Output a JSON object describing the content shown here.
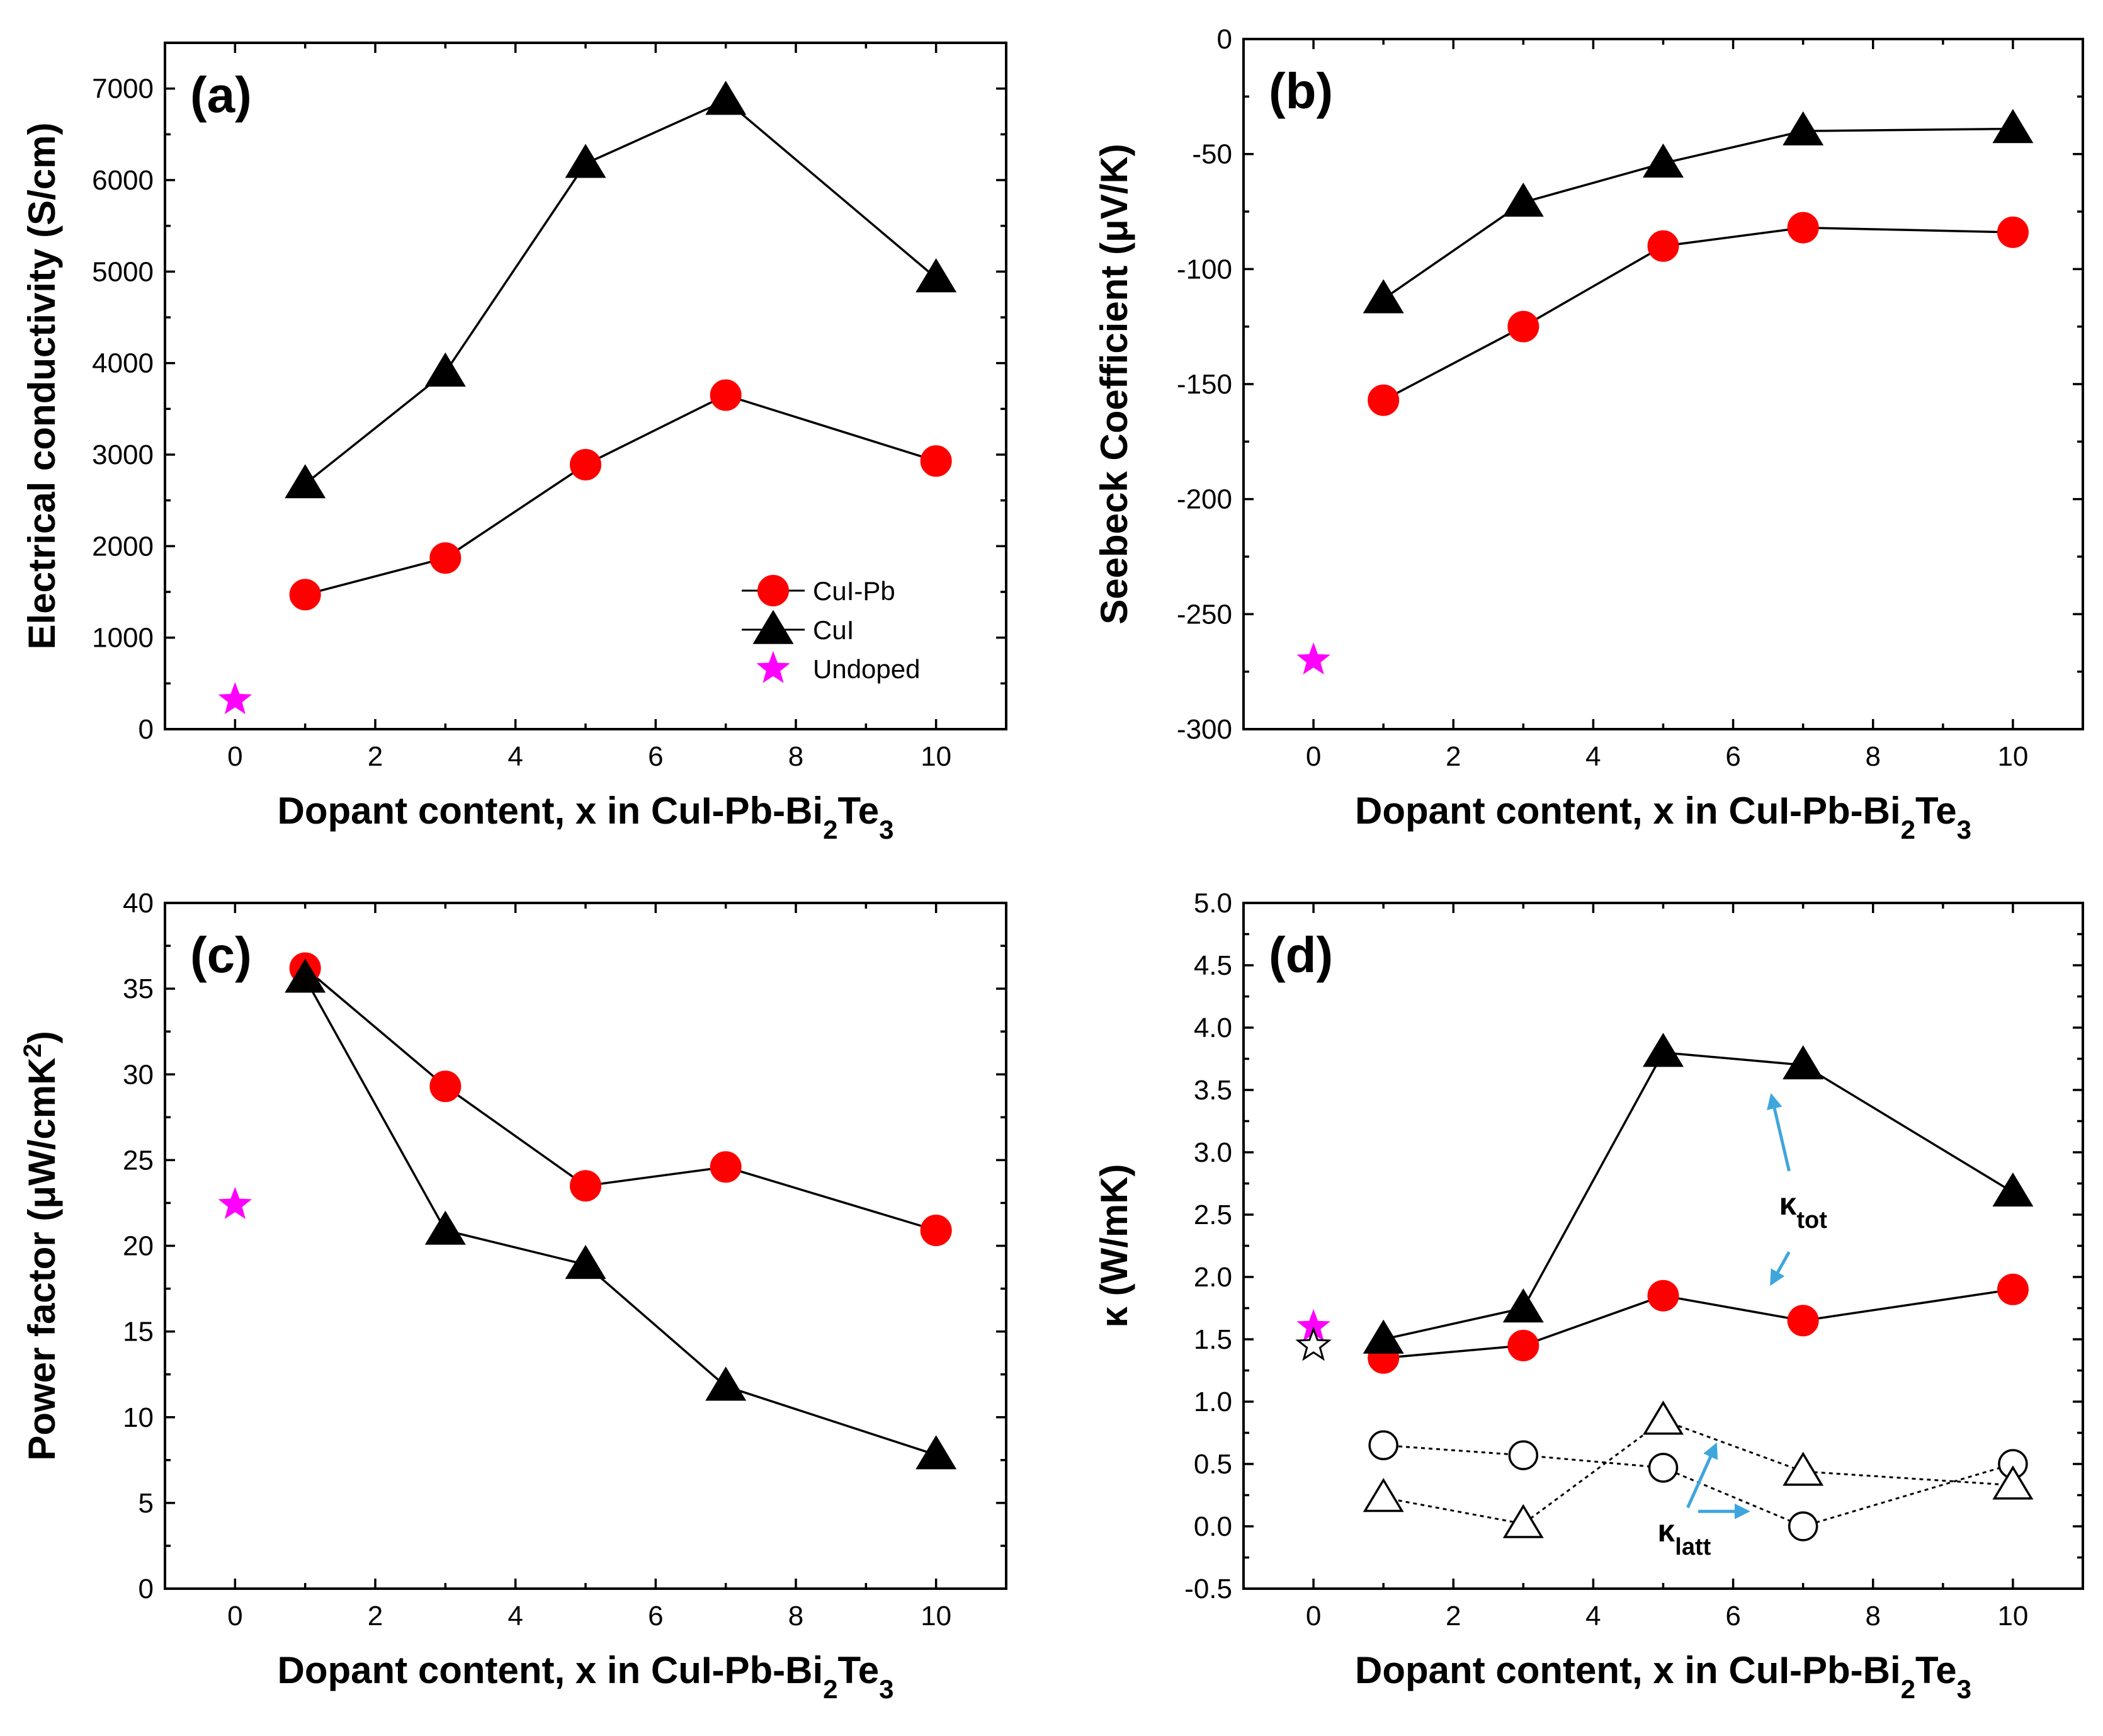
{
  "colors": {
    "cupb": "#ff0000",
    "cui": "#000000",
    "undoped": "#ff00ff",
    "arrow": "#3ea6dc"
  },
  "chart_data": [
    {
      "id": "a",
      "type": "line",
      "panel_label": "(a)",
      "xlabel": {
        "main": "Dopant content, x in CuI-Pb-Bi",
        "sub1": "2",
        "mid": "Te",
        "sub2": "3"
      },
      "ylabel": "Electrical conductivity (S/cm)",
      "xlim": [
        -1,
        11
      ],
      "ylim": [
        0,
        7500
      ],
      "xticks": [
        0,
        2,
        4,
        6,
        8,
        10
      ],
      "xtick_labels": [
        "0",
        "2",
        "4",
        "6",
        "8",
        "10"
      ],
      "yticks": [
        0,
        1000,
        2000,
        3000,
        4000,
        5000,
        6000,
        7000
      ],
      "ytick_labels": [
        "0",
        "1000",
        "2000",
        "3000",
        "4000",
        "5000",
        "6000",
        "7000"
      ],
      "series": [
        {
          "name": "CuI-Pb",
          "marker": "circle",
          "filled": true,
          "color": "#ff0000",
          "line": "solid",
          "x": [
            1,
            3,
            5,
            7,
            10
          ],
          "y": [
            1470,
            1870,
            2890,
            3650,
            2930
          ]
        },
        {
          "name": "CuI",
          "marker": "triangle",
          "filled": true,
          "color": "#000000",
          "line": "solid",
          "x": [
            1,
            3,
            5,
            7,
            10
          ],
          "y": [
            2680,
            3900,
            6180,
            6870,
            4930
          ]
        },
        {
          "name": "Undoped",
          "marker": "star",
          "filled": true,
          "color": "#ff00ff",
          "line": "none",
          "x": [
            0
          ],
          "y": [
            320
          ]
        }
      ],
      "legend": {
        "position": "bottom-right",
        "entries": [
          "CuI-Pb",
          "CuI",
          "Undoped"
        ]
      }
    },
    {
      "id": "b",
      "type": "line",
      "panel_label": "(b)",
      "xlabel": {
        "main": "Dopant content, x in CuI-Pb-Bi",
        "sub1": "2",
        "mid": "Te",
        "sub2": "3"
      },
      "ylabel": "Seebeck Coefficient (μV/K)",
      "xlim": [
        -1,
        11
      ],
      "ylim": [
        -300,
        0
      ],
      "xticks": [
        0,
        2,
        4,
        6,
        8,
        10
      ],
      "xtick_labels": [
        "0",
        "2",
        "4",
        "6",
        "8",
        "10"
      ],
      "yticks": [
        0,
        -50,
        -100,
        -150,
        -200,
        -250,
        -300
      ],
      "ytick_labels": [
        "0",
        "-50",
        "-100",
        "-150",
        "-200",
        "-250",
        "-300"
      ],
      "series": [
        {
          "name": "CuI-Pb",
          "marker": "circle",
          "filled": true,
          "color": "#ff0000",
          "line": "solid",
          "x": [
            1,
            3,
            5,
            7,
            10
          ],
          "y": [
            -157,
            -125,
            -90,
            -82,
            -84
          ]
        },
        {
          "name": "CuI",
          "marker": "triangle",
          "filled": true,
          "color": "#000000",
          "line": "solid",
          "x": [
            1,
            3,
            5,
            7,
            10
          ],
          "y": [
            -113,
            -71,
            -54,
            -40,
            -39
          ]
        },
        {
          "name": "Undoped",
          "marker": "star",
          "filled": true,
          "color": "#ff00ff",
          "line": "none",
          "x": [
            0
          ],
          "y": [
            -270
          ]
        }
      ]
    },
    {
      "id": "c",
      "type": "line",
      "panel_label": "(c)",
      "xlabel": {
        "main": "Dopant content, x in CuI-Pb-Bi",
        "sub1": "2",
        "mid": "Te",
        "sub2": "3"
      },
      "ylabel": "Power factor (μW/cmK",
      "ylabel_sup": "2",
      "ylabel_end": ")",
      "xlim": [
        -1,
        11
      ],
      "ylim": [
        0,
        40
      ],
      "xticks": [
        0,
        2,
        4,
        6,
        8,
        10
      ],
      "xtick_labels": [
        "0",
        "2",
        "4",
        "6",
        "8",
        "10"
      ],
      "yticks": [
        0,
        5,
        10,
        15,
        20,
        25,
        30,
        35,
        40
      ],
      "ytick_labels": [
        "0",
        "5",
        "10",
        "15",
        "20",
        "25",
        "30",
        "35",
        "40"
      ],
      "series": [
        {
          "name": "CuI-Pb",
          "marker": "circle",
          "filled": true,
          "color": "#ff0000",
          "line": "solid",
          "x": [
            1,
            3,
            5,
            7,
            10
          ],
          "y": [
            36.2,
            29.3,
            23.5,
            24.6,
            20.9
          ]
        },
        {
          "name": "CuI",
          "marker": "triangle",
          "filled": true,
          "color": "#000000",
          "line": "solid",
          "x": [
            1,
            3,
            5,
            7,
            10
          ],
          "y": [
            35.6,
            20.9,
            18.9,
            11.8,
            7.8
          ]
        },
        {
          "name": "Undoped",
          "marker": "star",
          "filled": true,
          "color": "#ff00ff",
          "line": "none",
          "x": [
            0
          ],
          "y": [
            22.4
          ]
        }
      ]
    },
    {
      "id": "d",
      "type": "line",
      "panel_label": "(d)",
      "xlabel": {
        "main": "Dopant content, x in CuI-Pb-Bi",
        "sub1": "2",
        "mid": "Te",
        "sub2": "3"
      },
      "ylabel": "κ (W/mK)",
      "xlim": [
        -1,
        11
      ],
      "ylim": [
        -0.5,
        5.0
      ],
      "xticks": [
        0,
        2,
        4,
        6,
        8,
        10
      ],
      "xtick_labels": [
        "0",
        "2",
        "4",
        "6",
        "8",
        "10"
      ],
      "yticks": [
        -0.5,
        0,
        0.5,
        1.0,
        1.5,
        2.0,
        2.5,
        3.0,
        3.5,
        4.0,
        4.5,
        5.0
      ],
      "ytick_labels": [
        "-0.5",
        "0.0",
        "0.5",
        "1.0",
        "1.5",
        "2.0",
        "2.5",
        "3.0",
        "3.5",
        "4.0",
        "4.5",
        "5.0"
      ],
      "series": [
        {
          "name": "CuI-Pb κtot",
          "marker": "circle",
          "filled": true,
          "color": "#ff0000",
          "line": "solid",
          "x": [
            1,
            3,
            5,
            7,
            10
          ],
          "y": [
            1.35,
            1.45,
            1.85,
            1.65,
            1.9
          ]
        },
        {
          "name": "CuI κtot",
          "marker": "triangle",
          "filled": true,
          "color": "#000000",
          "line": "solid",
          "x": [
            1,
            3,
            5,
            7,
            10
          ],
          "y": [
            1.5,
            1.75,
            3.8,
            3.7,
            2.68
          ]
        },
        {
          "name": "CuI-Pb κlatt",
          "marker": "circle",
          "filled": false,
          "color": "#000000",
          "line": "dotted",
          "x": [
            1,
            3,
            5,
            7,
            10
          ],
          "y": [
            0.65,
            0.57,
            0.47,
            0.0,
            0.5
          ]
        },
        {
          "name": "CuI κlatt",
          "marker": "triangle",
          "filled": false,
          "color": "#000000",
          "line": "dotted",
          "x": [
            1,
            3,
            5,
            7,
            10
          ],
          "y": [
            0.23,
            0.02,
            0.85,
            0.44,
            0.33
          ]
        },
        {
          "name": "Undoped κtot",
          "marker": "star",
          "filled": true,
          "color": "#ff00ff",
          "line": "none",
          "x": [
            0
          ],
          "y": [
            1.6
          ]
        },
        {
          "name": "Undoped κlatt",
          "marker": "star",
          "filled": false,
          "color": "#000000",
          "line": "none",
          "x": [
            0
          ],
          "y": [
            1.45
          ]
        }
      ],
      "annotations": [
        {
          "text": "κ",
          "sub": "tot",
          "x": 7.0,
          "y": 2.5
        },
        {
          "text": "κ",
          "sub": "latt",
          "x": 5.3,
          "y": -0.12
        }
      ],
      "arrows": [
        {
          "from": [
            6.8,
            2.85
          ],
          "to": [
            6.55,
            3.45
          ]
        },
        {
          "from": [
            6.8,
            2.2
          ],
          "to": [
            6.55,
            1.95
          ]
        },
        {
          "from": [
            5.35,
            0.15
          ],
          "to": [
            5.75,
            0.65
          ]
        },
        {
          "from": [
            5.5,
            0.12
          ],
          "to": [
            6.2,
            0.12
          ]
        }
      ]
    }
  ]
}
